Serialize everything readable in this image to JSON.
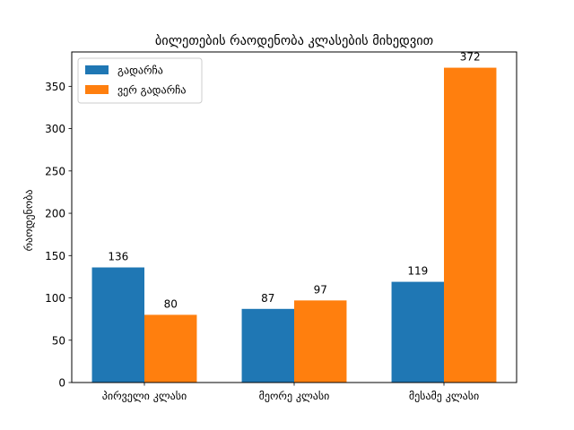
{
  "chart_data": {
    "type": "bar",
    "title": "ბილეთების რაოდენობა კლასების მიხედვით",
    "xlabel": "",
    "ylabel": "რაოდენობა",
    "categories": [
      "პირველი კლასი",
      "მეორე კლასი",
      "მესამე კლასი"
    ],
    "series": [
      {
        "name": "გადარჩა",
        "values": [
          136,
          87,
          119
        ],
        "color": "#1f77b4"
      },
      {
        "name": "ვერ გადარჩა",
        "values": [
          80,
          97,
          372
        ],
        "color": "#ff7f0e"
      }
    ],
    "ylim": [
      0,
      390.6
    ],
    "yticks": [
      0,
      50,
      100,
      150,
      200,
      250,
      300,
      350
    ],
    "grid": false,
    "legend_position": "top-left",
    "show_data_labels": true
  }
}
